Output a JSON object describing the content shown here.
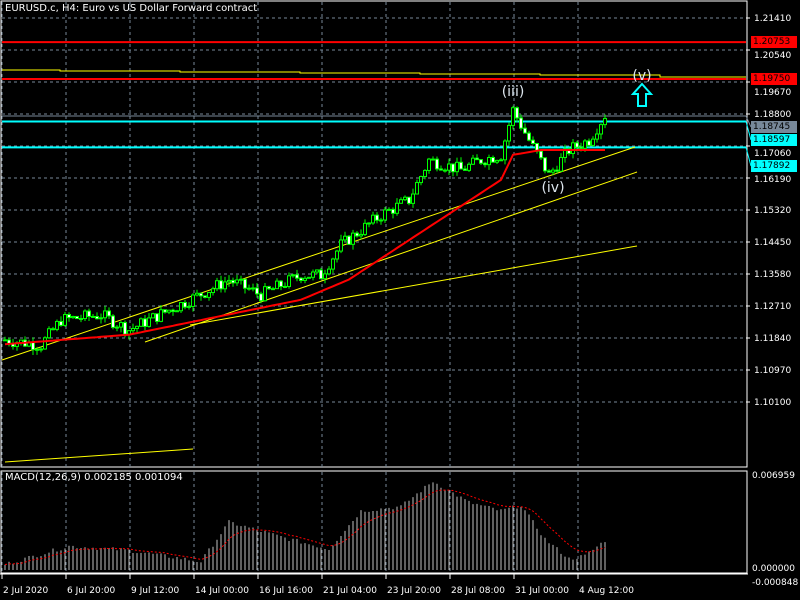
{
  "window": {
    "title": "EURUSD.c, H4:  Euro vs US Dollar Forward contract"
  },
  "price_axis": [
    "1.21410",
    "1.20540",
    "1.19670",
    "1.18800",
    "1.17060",
    "1.16190",
    "1.15320",
    "1.14450",
    "1.13580",
    "1.12710",
    "1.11840",
    "1.10970",
    "1.10100"
  ],
  "price_levels": [
    {
      "label": "1.20753",
      "value": 1.20753,
      "color": "#ff0000",
      "text_color": "#000000"
    },
    {
      "label": "1.19750",
      "value": 1.1975,
      "color": "#ff0000",
      "text_color": "#000000"
    },
    {
      "label": "1.18745",
      "value": 1.18745,
      "color": "#778899",
      "text_color": "#000000"
    },
    {
      "label": "1.18597",
      "value": 1.18597,
      "color": "#00ffff",
      "text_color": "#000000"
    },
    {
      "label": "1.17892",
      "value": 1.17892,
      "color": "#00ffff",
      "text_color": "#000000"
    }
  ],
  "time_axis": [
    "2 Jul 2020",
    "6 Jul 20:00",
    "9 Jul 12:00",
    "14 Jul 00:00",
    "16 Jul 16:00",
    "21 Jul 04:00",
    "23 Jul 20:00",
    "28 Jul 08:00",
    "31 Jul 00:00",
    "4 Aug 12:00"
  ],
  "annotations": {
    "wave_iii": "(iii)",
    "wave_iv": "(iv)",
    "wave_v": "(v)"
  },
  "macd": {
    "label": "MACD(12,26,9) 0.002185 0.001094",
    "axis_top": "0.006959",
    "axis_zero": "0.000000",
    "axis_bottom": "-0.000848"
  },
  "chart_data": {
    "type": "line",
    "title": "EURUSD.c, H4",
    "close_anchors": [
      [
        0,
        1.1266
      ],
      [
        9,
        1.1252
      ],
      [
        14,
        1.132
      ],
      [
        24,
        1.1334
      ],
      [
        31,
        1.1293
      ],
      [
        36,
        1.132
      ],
      [
        46,
        1.1374
      ],
      [
        56,
        1.1429
      ],
      [
        64,
        1.1388
      ],
      [
        74,
        1.1442
      ],
      [
        79,
        1.1442
      ],
      [
        84,
        1.1524
      ],
      [
        94,
        1.1605
      ],
      [
        101,
        1.1646
      ],
      [
        106,
        1.1755
      ],
      [
        114,
        1.1728
      ],
      [
        119,
        1.1755
      ],
      [
        124,
        1.1769
      ],
      [
        127,
        1.1891
      ],
      [
        131,
        1.1809
      ],
      [
        136,
        1.1714
      ],
      [
        141,
        1.1782
      ],
      [
        146,
        1.1809
      ],
      [
        150,
        1.1877
      ]
    ],
    "ma_anchors": [
      [
        0,
        1.1254
      ],
      [
        31,
        1.128
      ],
      [
        74,
        1.1375
      ],
      [
        86,
        1.143
      ],
      [
        101,
        1.1537
      ],
      [
        124,
        1.1701
      ],
      [
        127,
        1.1769
      ],
      [
        134,
        1.1782
      ],
      [
        150,
        1.1782
      ]
    ],
    "macd_hist_anchors": [
      [
        0,
        0.0004
      ],
      [
        16,
        0.0017
      ],
      [
        31,
        0.0014
      ],
      [
        49,
        0.0006
      ],
      [
        56,
        0.0034
      ],
      [
        71,
        0.0022
      ],
      [
        81,
        0.0015
      ],
      [
        89,
        0.0042
      ],
      [
        99,
        0.0045
      ],
      [
        107,
        0.0063
      ],
      [
        116,
        0.0048
      ],
      [
        124,
        0.0042
      ],
      [
        129,
        0.0046
      ],
      [
        135,
        0.0022
      ],
      [
        141,
        0.0008
      ],
      [
        145,
        0.001
      ],
      [
        150,
        0.0021
      ]
    ],
    "ylim": [
      1.0983,
      1.2167
    ],
    "macd_ylim": [
      -0.000848,
      0.006959
    ]
  },
  "colors": {
    "bull": "#00ff00",
    "bear": "#ffffff",
    "ma": "#ff0000",
    "trend": "#ffff00",
    "grid": "#778899"
  }
}
